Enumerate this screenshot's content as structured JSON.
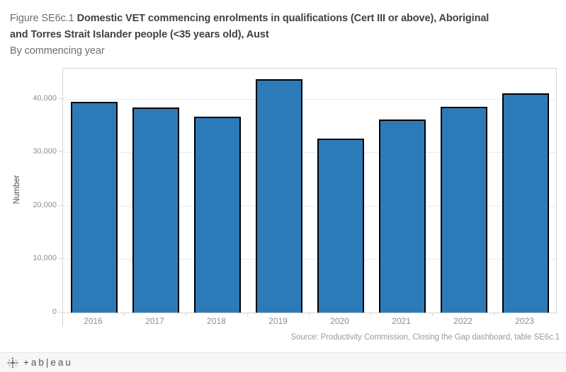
{
  "header": {
    "figure_label": "Figure SE6c.1",
    "title_line1": "Domestic VET commencing enrolments in qualifications (Cert III or above), Aboriginal",
    "title_line2": "and Torres Strait Islander people (<35 years old), Aust",
    "subtitle": "By commencing year"
  },
  "chart_data": {
    "type": "bar",
    "title": "Figure SE6c.1 Domestic VET commencing enrolments in qualifications (Cert III or above), Aboriginal and Torres Strait Islander people (<35 years old), Aust",
    "subtitle": "By commencing year",
    "categories": [
      "2016",
      "2017",
      "2018",
      "2019",
      "2020",
      "2021",
      "2022",
      "2023"
    ],
    "values": [
      39500,
      38400,
      36650,
      43650,
      32550,
      36100,
      38500,
      41100
    ],
    "xlabel": "",
    "ylabel": "Number",
    "ylim": [
      0,
      45700
    ],
    "yticks": [
      {
        "value": 0,
        "label": "0"
      },
      {
        "value": 10000,
        "label": "10,000"
      },
      {
        "value": 20000,
        "label": "20,000"
      },
      {
        "value": 30000,
        "label": "30,000"
      },
      {
        "value": 40000,
        "label": "40,000"
      }
    ],
    "grid": true,
    "legend": "none",
    "bar_color": "#2d7ab8",
    "bar_border_color": "#000000"
  },
  "footer": {
    "source": "Source: Productivity Commission, Closing the Gap dashboard, table SE6c.1",
    "logo_text": "+ab|eau"
  }
}
